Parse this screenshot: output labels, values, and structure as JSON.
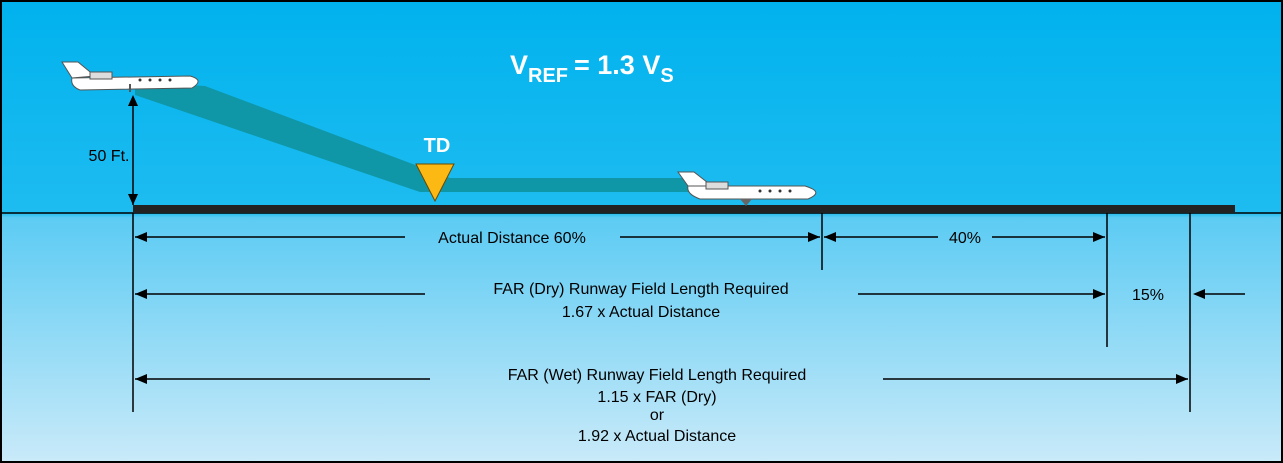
{
  "formula": {
    "v": "V",
    "ref": "REF",
    "eq": "= 1.3 V",
    "s": "S"
  },
  "height_label": "50 Ft.",
  "touchdown_label": "TD",
  "dimensions": {
    "actual": "Actual Distance 60%",
    "remainder": "40%",
    "dry": [
      "FAR (Dry) Runway Field Length Required",
      "1.67 x Actual Distance"
    ],
    "wet_margin": "15%",
    "wet": [
      "FAR (Wet) Runway Field Length Required",
      "1.15 x FAR (Dry)",
      "or",
      "1.92 x Actual Distance"
    ]
  }
}
